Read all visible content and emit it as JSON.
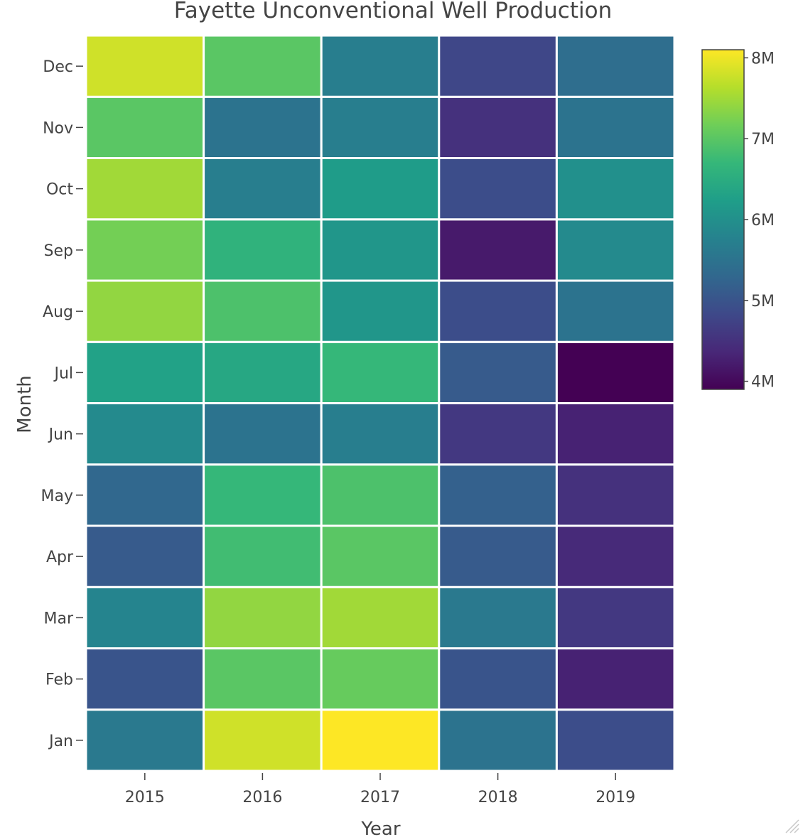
{
  "chart_data": {
    "type": "heatmap",
    "title": "Fayette Unconventional Well Production",
    "xlabel": "Year",
    "ylabel": "Month",
    "x": [
      "2015",
      "2016",
      "2017",
      "2018",
      "2019"
    ],
    "y": [
      "Jan",
      "Feb",
      "Mar",
      "Apr",
      "May",
      "Jun",
      "Jul",
      "Aug",
      "Sep",
      "Oct",
      "Nov",
      "Dec"
    ],
    "z": [
      [
        5.6,
        7.8,
        8.1,
        5.5,
        4.9
      ],
      [
        5.0,
        7.0,
        7.1,
        5.0,
        4.3
      ],
      [
        5.8,
        7.4,
        7.5,
        5.6,
        4.6
      ],
      [
        5.1,
        6.8,
        7.0,
        5.1,
        4.4
      ],
      [
        5.3,
        6.7,
        6.9,
        5.2,
        4.5
      ],
      [
        5.9,
        5.5,
        5.7,
        4.6,
        4.3
      ],
      [
        6.3,
        6.4,
        6.7,
        5.1,
        3.9
      ],
      [
        7.4,
        6.9,
        6.1,
        4.9,
        5.5
      ],
      [
        7.2,
        6.6,
        6.1,
        4.2,
        5.9
      ],
      [
        7.5,
        5.7,
        6.2,
        4.9,
        6.0
      ],
      [
        7.0,
        5.5,
        5.7,
        4.5,
        5.5
      ],
      [
        7.8,
        7.0,
        5.7,
        4.8,
        5.4
      ]
    ],
    "zmin": 3.9,
    "zmax": 8.1,
    "colorscale": "Viridis",
    "colorbar": {
      "ticks": [
        4,
        5,
        6,
        7,
        8
      ],
      "ticklabels": [
        "4M",
        "5M",
        "6M",
        "7M",
        "8M"
      ],
      "placement": "right"
    },
    "colors": [
      "#440154",
      "#482878",
      "#3e4989",
      "#31688e",
      "#26828e",
      "#1f9e89",
      "#35b779",
      "#6ece58",
      "#b5de2b",
      "#fde725"
    ]
  }
}
